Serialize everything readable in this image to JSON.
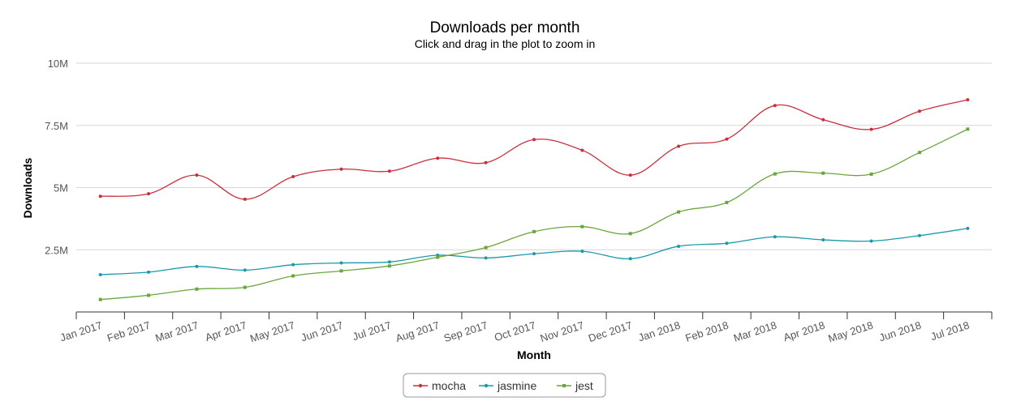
{
  "chart_data": {
    "type": "line",
    "title": "Downloads per month",
    "subtitle": "Click and drag in the plot to zoom in",
    "xlabel": "Month",
    "ylabel": "Downloads",
    "ylim": [
      0,
      10000000
    ],
    "y_ticks": [
      {
        "value": 2500000,
        "label": "2.5M"
      },
      {
        "value": 5000000,
        "label": "5M"
      },
      {
        "value": 7500000,
        "label": "7.5M"
      },
      {
        "value": 10000000,
        "label": "10M"
      }
    ],
    "categories": [
      "Jan 2017",
      "Feb 2017",
      "Mar 2017",
      "Apr 2017",
      "May 2017",
      "Jun 2017",
      "Jul 2017",
      "Aug 2017",
      "Sep 2017",
      "Oct 2017",
      "Nov 2017",
      "Dec 2017",
      "Jan 2018",
      "Feb 2018",
      "Mar 2018",
      "Apr 2018",
      "May 2018",
      "Jun 2018",
      "Jul 2018"
    ],
    "series": [
      {
        "name": "mocha",
        "color": "#c8303c",
        "values": [
          4650000,
          4750000,
          5500000,
          4530000,
          5440000,
          5740000,
          5660000,
          6180000,
          6000000,
          6930000,
          6500000,
          5500000,
          6660000,
          6950000,
          8300000,
          7730000,
          7340000,
          8070000,
          8530000
        ]
      },
      {
        "name": "jasmine",
        "color": "#1a9aa8",
        "values": [
          1500000,
          1600000,
          1830000,
          1680000,
          1900000,
          1970000,
          2010000,
          2280000,
          2170000,
          2340000,
          2440000,
          2140000,
          2640000,
          2760000,
          3020000,
          2900000,
          2850000,
          3070000,
          3360000
        ]
      },
      {
        "name": "jest",
        "color": "#6aa63c",
        "values": [
          500000,
          670000,
          920000,
          990000,
          1450000,
          1650000,
          1850000,
          2200000,
          2590000,
          3230000,
          3430000,
          3150000,
          4020000,
          4400000,
          5550000,
          5580000,
          5540000,
          6410000,
          7350000
        ]
      }
    ],
    "legend_position": "bottom-center",
    "grid": true
  }
}
